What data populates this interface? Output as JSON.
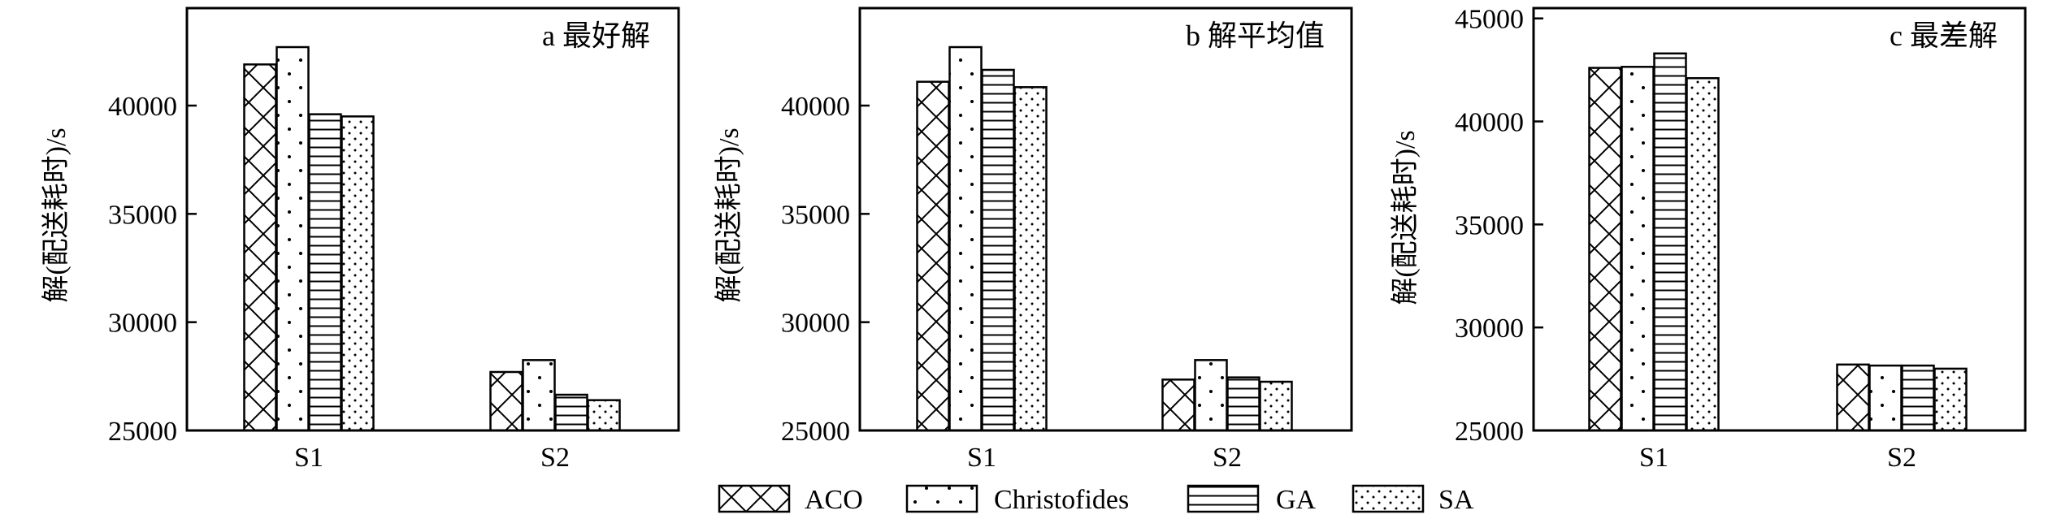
{
  "chart_data": [
    {
      "type": "bar",
      "title": "a 最好解",
      "ylabel": "解(配送耗时)/s",
      "categories": [
        "S1",
        "S2"
      ],
      "ylim": [
        25000,
        44500
      ],
      "yticks": [
        25000,
        30000,
        35000,
        40000
      ],
      "series": [
        {
          "name": "ACO",
          "values": [
            41900,
            27700
          ]
        },
        {
          "name": "Christofides",
          "values": [
            42700,
            28250
          ]
        },
        {
          "name": "GA",
          "values": [
            39600,
            26650
          ]
        },
        {
          "name": "SA",
          "values": [
            39500,
            26400
          ]
        }
      ]
    },
    {
      "type": "bar",
      "title": "b 解平均值",
      "ylabel": "解(配送耗时)/s",
      "categories": [
        "S1",
        "S2"
      ],
      "ylim": [
        25000,
        44500
      ],
      "yticks": [
        25000,
        30000,
        35000,
        40000
      ],
      "series": [
        {
          "name": "ACO",
          "values": [
            41100,
            27350
          ]
        },
        {
          "name": "Christofides",
          "values": [
            42700,
            28250
          ]
        },
        {
          "name": "GA",
          "values": [
            41650,
            27450
          ]
        },
        {
          "name": "SA",
          "values": [
            40850,
            27250
          ]
        }
      ]
    },
    {
      "type": "bar",
      "title": "c  最差解",
      "ylabel": "解(配送耗时)/s",
      "categories": [
        "S1",
        "S2"
      ],
      "ylim": [
        25000,
        45500
      ],
      "yticks": [
        25000,
        30000,
        35000,
        40000,
        45000
      ],
      "series": [
        {
          "name": "ACO",
          "values": [
            42600,
            28200
          ]
        },
        {
          "name": "Christofides",
          "values": [
            42650,
            28150
          ]
        },
        {
          "name": "GA",
          "values": [
            43300,
            28150
          ]
        },
        {
          "name": "SA",
          "values": [
            42100,
            28000
          ]
        }
      ]
    }
  ],
  "legend": {
    "placement": "bottom-center",
    "items": [
      {
        "name": "ACO",
        "pattern": "crosshatch"
      },
      {
        "name": "Christofides",
        "pattern": "sparse-dots"
      },
      {
        "name": "GA",
        "pattern": "horizontal-lines"
      },
      {
        "name": "SA",
        "pattern": "diagonal-dots"
      }
    ]
  },
  "colors": {
    "ink": "#000000",
    "bar_fill": "#ffffff"
  }
}
